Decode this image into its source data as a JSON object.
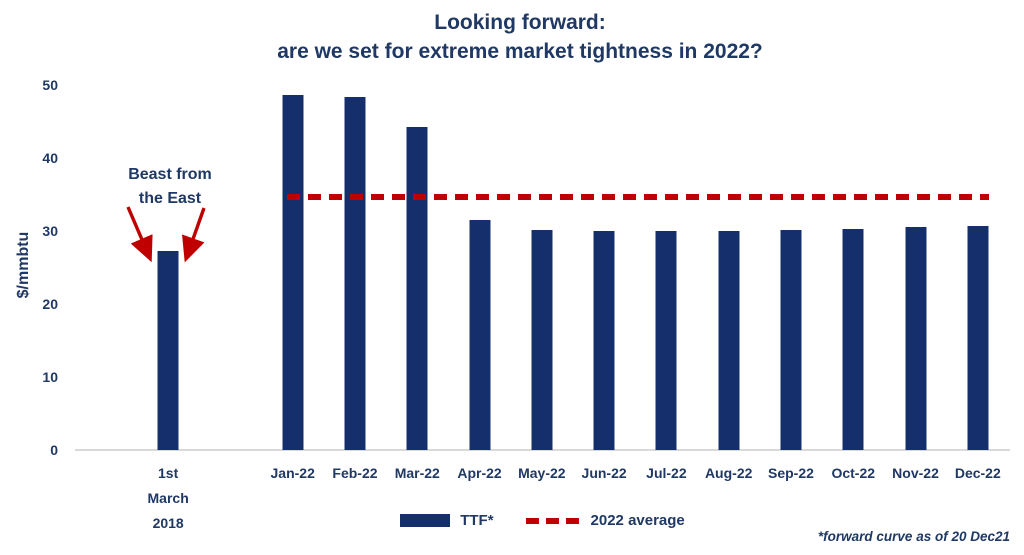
{
  "title": {
    "line1": "Looking forward:",
    "line2": "are we set for extreme market tightness in 2022?"
  },
  "annotation": {
    "line1": "Beast from",
    "line2": "the East"
  },
  "legend": {
    "ttf_label": "TTF*",
    "average_label": "2022 average"
  },
  "footnote": "*forward curve as of 20 Dec21",
  "colors": {
    "navy_text": "#1F3864",
    "bar_navy": "#142F6B",
    "red": "#C00000",
    "axis_line": "#D9D9D9"
  },
  "chart_data": {
    "type": "bar",
    "title": "Looking forward: are we set for extreme market tightness in 2022?",
    "xlabel": "",
    "ylabel": "$/mmbtu",
    "ylim": [
      0,
      50
    ],
    "yticks": [
      0,
      10,
      20,
      30,
      40,
      50
    ],
    "grid": false,
    "legend_position": "bottom",
    "categories": [
      "1st\nMarch\n2018",
      "Jan-22",
      "Feb-22",
      "Mar-22",
      "Apr-22",
      "May-22",
      "Jun-22",
      "Jul-22",
      "Aug-22",
      "Sep-22",
      "Oct-22",
      "Nov-22",
      "Dec-22"
    ],
    "series": [
      {
        "name": "TTF*",
        "values": [
          27.2,
          48.6,
          48.4,
          44.3,
          31.5,
          30.2,
          30.0,
          30.0,
          30.0,
          30.2,
          30.3,
          30.5,
          30.7
        ]
      }
    ],
    "average_line": {
      "label": "2022 average",
      "value": 34.6,
      "style": "dashed",
      "color": "#C00000"
    },
    "annotation": {
      "text": "Beast from the East",
      "points_to": "1st March 2018"
    }
  }
}
